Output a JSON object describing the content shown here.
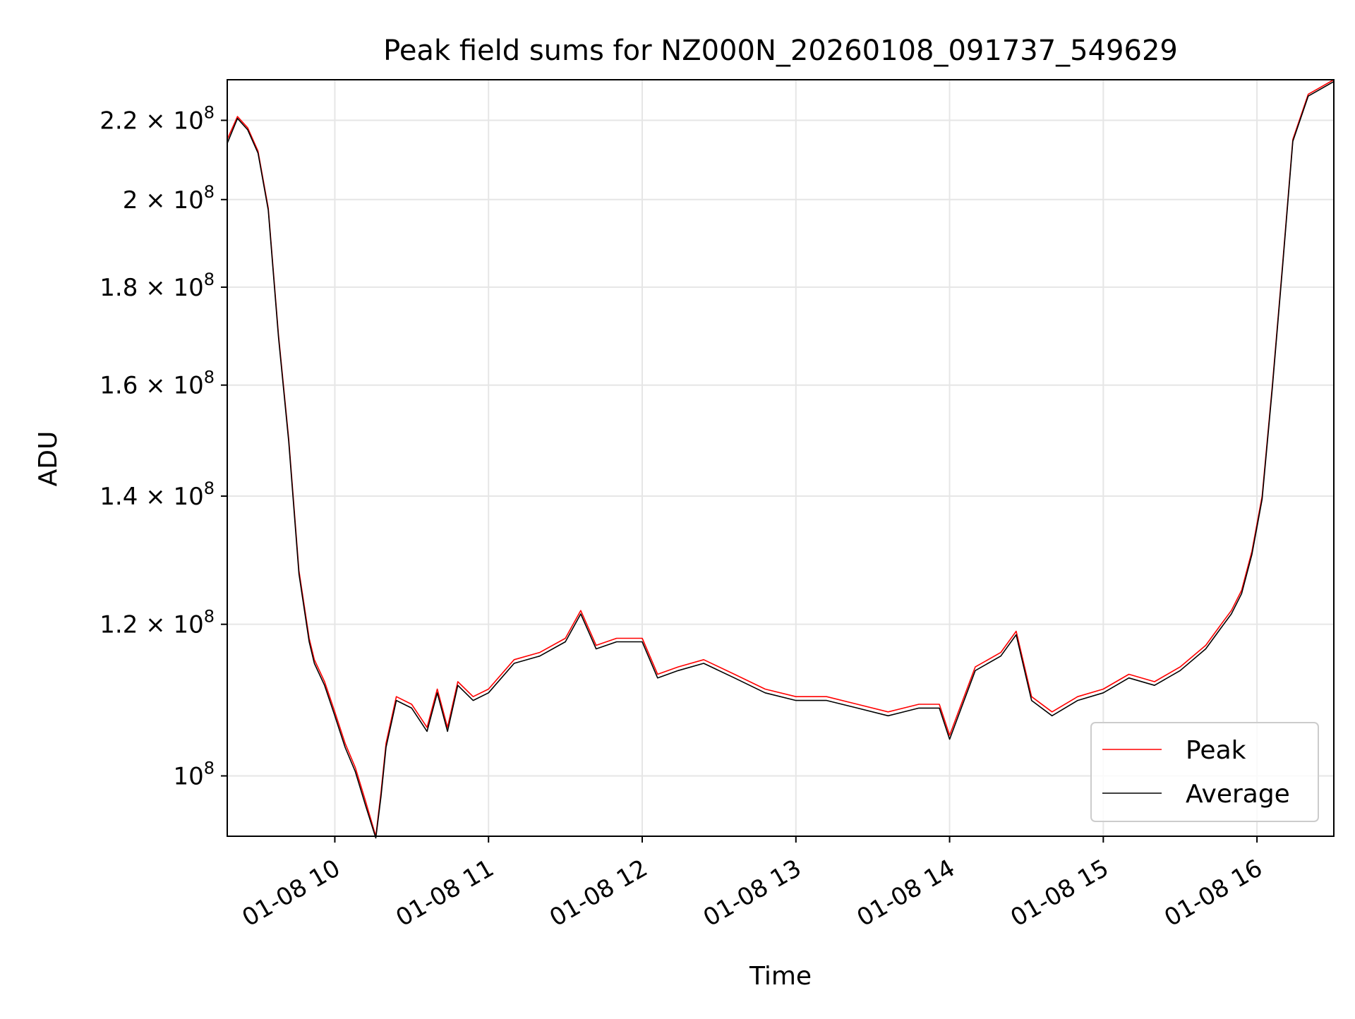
{
  "chart_data": {
    "type": "line",
    "title": "Peak field sums for NZ000N_20260108_091737_549629",
    "xlabel": "Time",
    "ylabel": "ADU",
    "y_scale": "log",
    "grid": true,
    "legend_position": "lower right",
    "xlim": [
      "01-08 09:18",
      "01-08 16:30"
    ],
    "ylim": [
      93000000,
      231000000
    ],
    "x_ticks": [
      "01-08 10",
      "01-08 11",
      "01-08 12",
      "01-08 13",
      "01-08 14",
      "01-08 15",
      "01-08 16"
    ],
    "y_ticks": [
      {
        "value": 100000000,
        "label": "10^8"
      },
      {
        "value": 120000000,
        "label": "1.2 × 10^8"
      },
      {
        "value": 140000000,
        "label": "1.4 × 10^8"
      },
      {
        "value": 160000000,
        "label": "1.6 × 10^8"
      },
      {
        "value": 180000000,
        "label": "1.8 × 10^8"
      },
      {
        "value": 200000000,
        "label": "2 × 10^8"
      },
      {
        "value": 220000000,
        "label": "2.2 × 10^8"
      }
    ],
    "series": [
      {
        "name": "Peak",
        "color": "#ff0000",
        "x": [
          "01-08 09:18",
          "01-08 09:22",
          "01-08 09:26",
          "01-08 09:30",
          "01-08 09:34",
          "01-08 09:38",
          "01-08 09:42",
          "01-08 09:46",
          "01-08 09:50",
          "01-08 09:52",
          "01-08 09:56",
          "01-08 10:00",
          "01-08 10:04",
          "01-08 10:08",
          "01-08 10:12",
          "01-08 10:16",
          "01-08 10:18",
          "01-08 10:20",
          "01-08 10:24",
          "01-08 10:30",
          "01-08 10:36",
          "01-08 10:40",
          "01-08 10:44",
          "01-08 10:48",
          "01-08 10:54",
          "01-08 11:00",
          "01-08 11:10",
          "01-08 11:20",
          "01-08 11:30",
          "01-08 11:36",
          "01-08 11:42",
          "01-08 11:50",
          "01-08 12:00",
          "01-08 12:06",
          "01-08 12:14",
          "01-08 12:24",
          "01-08 12:36",
          "01-08 12:48",
          "01-08 13:00",
          "01-08 13:12",
          "01-08 13:24",
          "01-08 13:36",
          "01-08 13:48",
          "01-08 13:56",
          "01-08 14:00",
          "01-08 14:10",
          "01-08 14:20",
          "01-08 14:26",
          "01-08 14:32",
          "01-08 14:40",
          "01-08 14:50",
          "01-08 15:00",
          "01-08 15:10",
          "01-08 15:20",
          "01-08 15:30",
          "01-08 15:40",
          "01-08 15:46",
          "01-08 15:50",
          "01-08 15:54",
          "01-08 15:58",
          "01-08 16:02",
          "01-08 16:06",
          "01-08 16:10",
          "01-08 16:14",
          "01-08 16:20",
          "01-08 16:30"
        ],
        "values": [
          215000000,
          221000000,
          218000000,
          212000000,
          198000000,
          170000000,
          150000000,
          128000000,
          118000000,
          115000000,
          112000000,
          108000000,
          104000000,
          101000000,
          97000000,
          93000000,
          98000000,
          104000000,
          110000000,
          109000000,
          106000000,
          111000000,
          106000000,
          112000000,
          110000000,
          111000000,
          115000000,
          116000000,
          118000000,
          122000000,
          117000000,
          118000000,
          118000000,
          113000000,
          114000000,
          115000000,
          113000000,
          111000000,
          110000000,
          110000000,
          109000000,
          108000000,
          109000000,
          109000000,
          105000000,
          114000000,
          116000000,
          119000000,
          110000000,
          108000000,
          110000000,
          111000000,
          113000000,
          112000000,
          114000000,
          117000000,
          120000000,
          122000000,
          125000000,
          131000000,
          140000000,
          160000000,
          185000000,
          215000000,
          227000000,
          231000000
        ]
      },
      {
        "name": "Average",
        "color": "#000000",
        "x": [
          "01-08 09:18",
          "01-08 09:22",
          "01-08 09:26",
          "01-08 09:30",
          "01-08 09:34",
          "01-08 09:38",
          "01-08 09:42",
          "01-08 09:46",
          "01-08 09:50",
          "01-08 09:52",
          "01-08 09:56",
          "01-08 10:00",
          "01-08 10:04",
          "01-08 10:08",
          "01-08 10:12",
          "01-08 10:16",
          "01-08 10:18",
          "01-08 10:20",
          "01-08 10:24",
          "01-08 10:30",
          "01-08 10:36",
          "01-08 10:40",
          "01-08 10:44",
          "01-08 10:48",
          "01-08 10:54",
          "01-08 11:00",
          "01-08 11:10",
          "01-08 11:20",
          "01-08 11:30",
          "01-08 11:36",
          "01-08 11:42",
          "01-08 11:50",
          "01-08 12:00",
          "01-08 12:06",
          "01-08 12:14",
          "01-08 12:24",
          "01-08 12:36",
          "01-08 12:48",
          "01-08 13:00",
          "01-08 13:12",
          "01-08 13:24",
          "01-08 13:36",
          "01-08 13:48",
          "01-08 13:56",
          "01-08 14:00",
          "01-08 14:10",
          "01-08 14:20",
          "01-08 14:26",
          "01-08 14:32",
          "01-08 14:40",
          "01-08 14:50",
          "01-08 15:00",
          "01-08 15:10",
          "01-08 15:20",
          "01-08 15:30",
          "01-08 15:40",
          "01-08 15:46",
          "01-08 15:50",
          "01-08 15:54",
          "01-08 15:58",
          "01-08 16:02",
          "01-08 16:06",
          "01-08 16:10",
          "01-08 16:14",
          "01-08 16:20",
          "01-08 16:30"
        ],
        "values": [
          214000000,
          220500000,
          217500000,
          211500000,
          197500000,
          169500000,
          149500000,
          127500000,
          117500000,
          114500000,
          111500000,
          107500000,
          103500000,
          100500000,
          96500000,
          92800000,
          97500000,
          103500000,
          109500000,
          108500000,
          105500000,
          110500000,
          105500000,
          111500000,
          109500000,
          110500000,
          114500000,
          115500000,
          117500000,
          121500000,
          116500000,
          117500000,
          117500000,
          112500000,
          113500000,
          114500000,
          112500000,
          110500000,
          109500000,
          109500000,
          108500000,
          107500000,
          108500000,
          108500000,
          104500000,
          113500000,
          115500000,
          118500000,
          109500000,
          107500000,
          109500000,
          110500000,
          112500000,
          111500000,
          113500000,
          116500000,
          119500000,
          121500000,
          124500000,
          130500000,
          139500000,
          159500000,
          184500000,
          214500000,
          226500000,
          230500000
        ]
      }
    ]
  }
}
